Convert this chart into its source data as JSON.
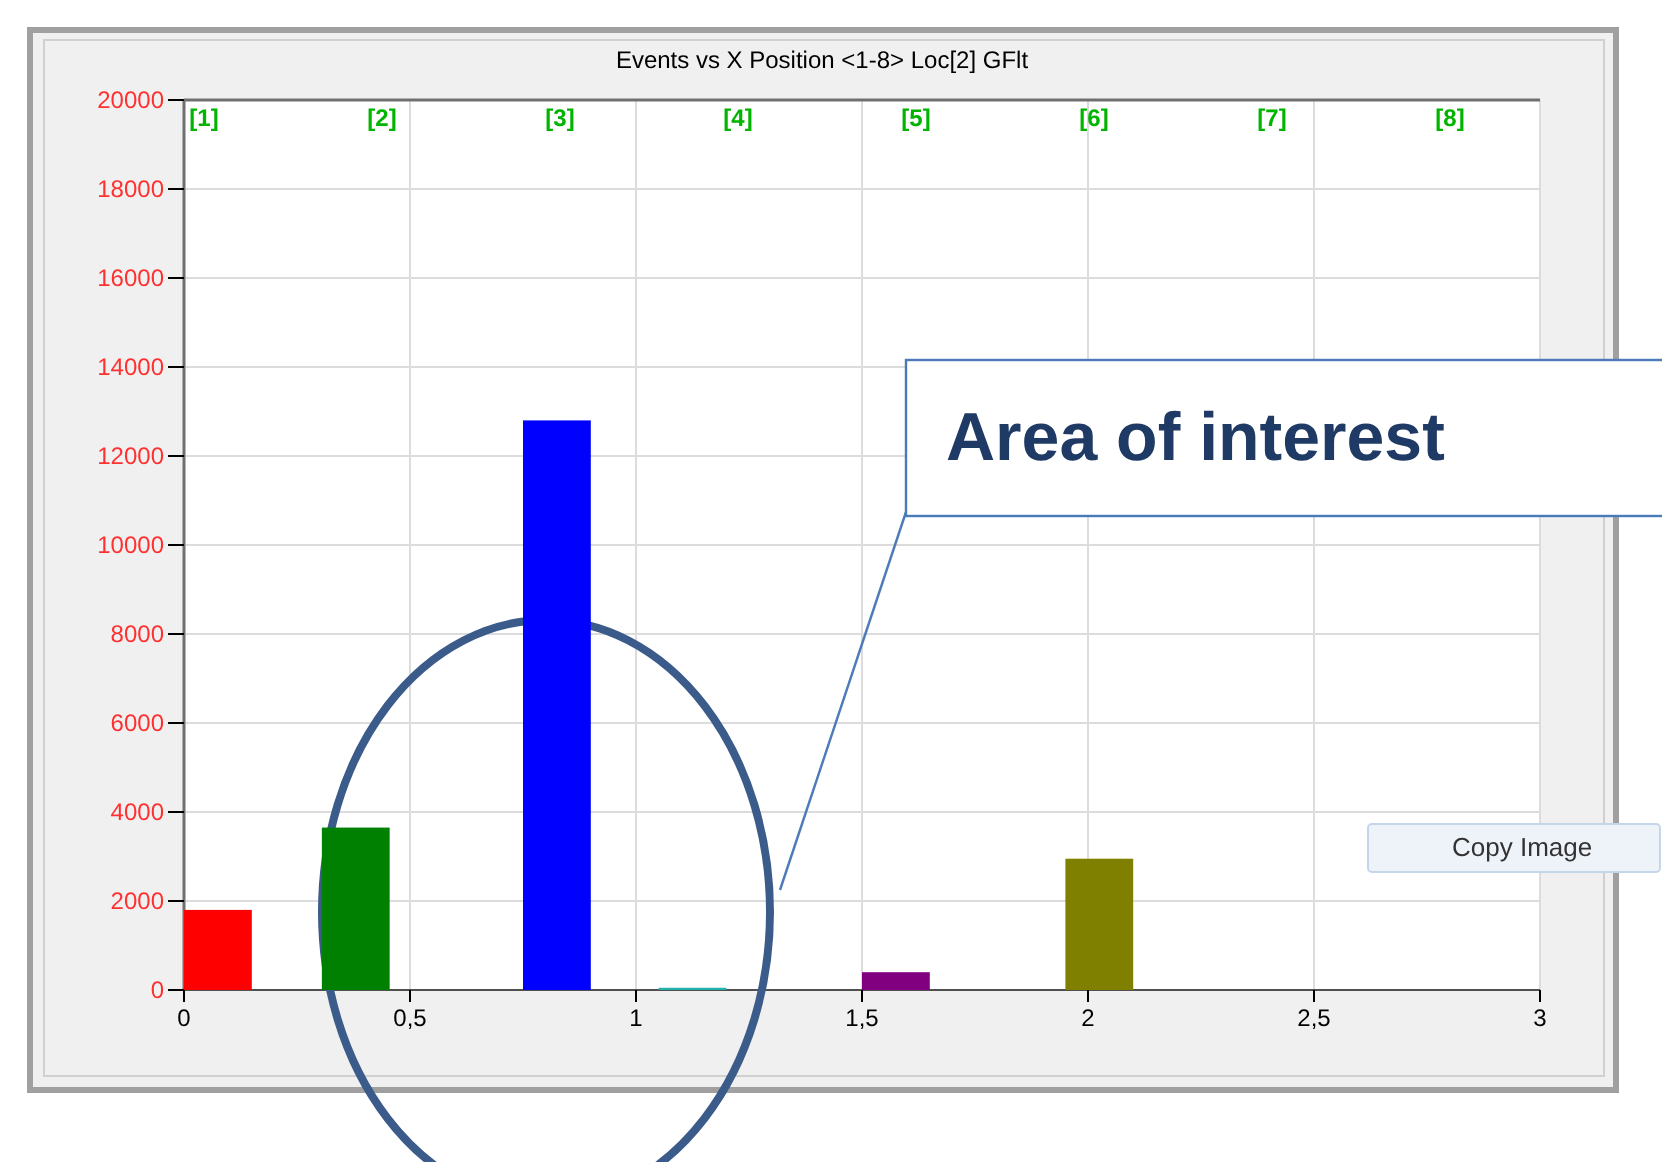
{
  "chart_data": {
    "type": "bar",
    "title": "Events vs X Position <1-8> Loc[2] GFlt",
    "x": [
      0.075,
      0.38,
      0.825,
      1.125,
      1.575,
      2.025
    ],
    "values": [
      1800,
      3650,
      12800,
      50,
      400,
      2950
    ],
    "colors": [
      "#ff0000",
      "#008000",
      "#0000ff",
      "#20b2aa",
      "#800080",
      "#808000"
    ],
    "xlim": [
      0,
      3
    ],
    "xticks": [
      0,
      {
        "value": 0.5,
        "label": "0,5"
      },
      1,
      {
        "value": 1.5,
        "label": "1,5"
      },
      2,
      {
        "value": 2.5,
        "label": "2,5"
      },
      3
    ],
    "ylim": [
      0,
      20000
    ],
    "yticks": [
      0,
      2000,
      4000,
      6000,
      8000,
      10000,
      12000,
      14000,
      16000,
      18000,
      20000
    ],
    "grid": true,
    "annotations": [
      "[1]",
      "[2]",
      "[3]",
      "[4]",
      "[5]",
      "[6]",
      "[7]",
      "[8]",
      "Area of interest",
      "Copy Image"
    ]
  }
}
